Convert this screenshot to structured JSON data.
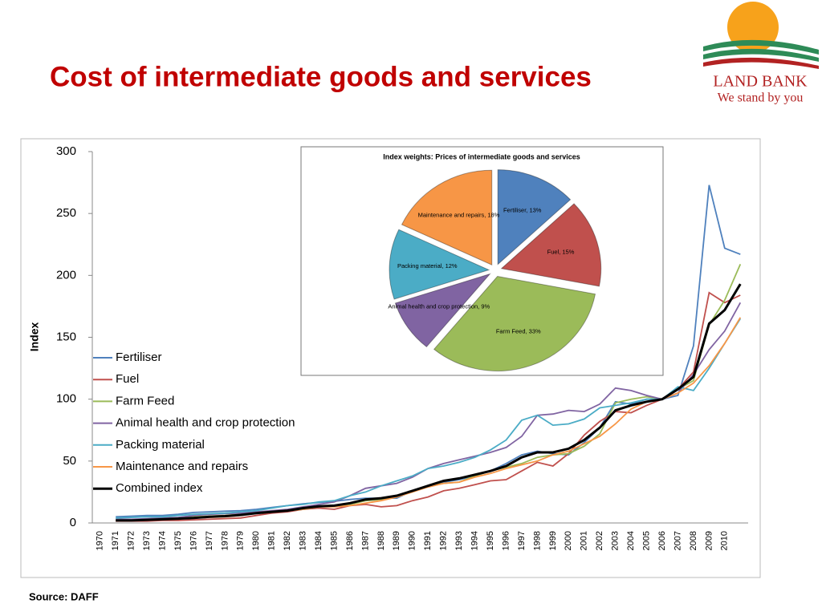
{
  "slide": {
    "title": "Cost of intermediate goods and services",
    "source": "Source: DAFF",
    "logo": {
      "name": "LAND BANK",
      "tagline": "We stand by you"
    }
  },
  "chart_data": [
    {
      "type": "line",
      "ylabel": "Index",
      "categories": [
        "1970",
        "1971",
        "1972",
        "1973",
        "1974",
        "1975",
        "1976",
        "1977",
        "1978",
        "1979",
        "1980",
        "1981",
        "1982",
        "1983",
        "1984",
        "1985",
        "1986",
        "1987",
        "1988",
        "1989",
        "1990",
        "1991",
        "1992",
        "1993",
        "1994",
        "1995",
        "1996",
        "1997",
        "1998",
        "1999",
        "2000",
        "2001",
        "2002",
        "2003",
        "2004",
        "2005",
        "2006",
        "2007",
        "2008",
        "2009",
        "2010",
        null
      ],
      "ylim": [
        0,
        300
      ],
      "yticks": [
        0,
        50,
        100,
        150,
        200,
        250,
        300
      ],
      "legend": "left",
      "series": [
        {
          "name": "Fertiliser",
          "color": "#4f81bd",
          "values": [
            null,
            5,
            5.5,
            6,
            6,
            7,
            8.5,
            9,
            9.5,
            10,
            11,
            12.5,
            14,
            15.5,
            16.5,
            17.5,
            19,
            20,
            20,
            20,
            26,
            30,
            33,
            35,
            38,
            42,
            48,
            55,
            58,
            56,
            55,
            65,
            77,
            98,
            96,
            100,
            100,
            103,
            143,
            273,
            222,
            217
          ]
        },
        {
          "name": "Fuel",
          "color": "#c0504d",
          "values": [
            null,
            1.5,
            1.5,
            1.5,
            2,
            2,
            2.5,
            3,
            3.5,
            4,
            6,
            8,
            9,
            11,
            12,
            11,
            14,
            15,
            13,
            14,
            18,
            21,
            26,
            28,
            31,
            34,
            35,
            42,
            49,
            46,
            56,
            71,
            82,
            90,
            89,
            95,
            100,
            108,
            122,
            186,
            178,
            184
          ]
        },
        {
          "name": "Farm Feed",
          "color": "#9bbb59",
          "values": [
            null,
            3,
            3,
            3,
            3.5,
            4,
            5,
            5.5,
            6,
            7,
            8,
            9,
            10,
            11,
            13,
            14,
            15,
            18,
            19,
            21,
            26,
            30,
            32,
            33,
            38,
            42,
            45,
            48,
            53,
            55,
            56,
            62,
            72,
            97,
            100,
            102,
            100,
            108,
            115,
            160,
            180,
            209
          ]
        },
        {
          "name": "Animal health and crop protection",
          "color": "#8064a2",
          "values": [
            null,
            3,
            3,
            3.5,
            4,
            4.5,
            6,
            7,
            7.5,
            8,
            9,
            10,
            11,
            13,
            15,
            17,
            22,
            28,
            30,
            32,
            37,
            44,
            48,
            51,
            54,
            57,
            61,
            70,
            87,
            88,
            91,
            90,
            96,
            109,
            107,
            103,
            100,
            105,
            120,
            140,
            155,
            178
          ]
        },
        {
          "name": "Packing material",
          "color": "#4bacc6",
          "values": [
            null,
            4,
            4.5,
            5,
            5,
            6,
            7,
            7.5,
            8,
            9,
            10,
            12,
            14,
            15,
            17,
            18,
            22,
            25,
            30,
            34,
            38,
            44,
            46,
            49,
            53,
            59,
            67,
            83,
            87,
            79,
            80,
            84,
            93,
            95,
            97,
            100,
            100,
            110,
            107,
            125,
            145,
            165
          ]
        },
        {
          "name": "Maintenance and repairs",
          "color": "#f79646",
          "values": [
            null,
            2,
            2,
            2.5,
            3,
            3.5,
            4,
            4.5,
            5,
            6,
            8,
            9,
            10,
            11,
            13,
            13,
            14,
            16,
            18,
            21,
            25,
            29,
            32,
            33,
            37,
            40,
            44,
            47,
            50,
            55,
            58,
            64,
            70,
            80,
            92,
            98,
            100,
            105,
            113,
            127,
            145,
            166
          ]
        },
        {
          "name": "Combined index",
          "color": "#000000",
          "values": [
            null,
            2,
            2,
            2.5,
            3,
            3.5,
            4,
            5,
            5.5,
            6.5,
            8,
            9,
            10,
            12,
            13.5,
            14,
            16,
            19,
            20,
            22,
            26,
            30,
            34,
            36,
            39,
            42,
            46,
            53,
            57,
            57,
            60,
            67,
            77,
            91,
            95,
            98,
            100,
            108,
            118,
            161,
            172,
            193
          ]
        }
      ]
    },
    {
      "type": "pie",
      "title": "Index weights: Prices of intermediate goods and services",
      "categories": [
        "Fertiliser, 13%",
        "Fuel, 15%",
        "Farm Feed, 33%",
        "Animal health and crop protection, 9%",
        "Packing material, 12%",
        "Maintenance and repairs, 18%"
      ],
      "values": [
        13,
        15,
        33,
        9,
        12,
        18
      ],
      "colors": [
        "#4f81bd",
        "#c0504d",
        "#9bbb59",
        "#8064a2",
        "#4bacc6",
        "#f79646"
      ]
    }
  ]
}
